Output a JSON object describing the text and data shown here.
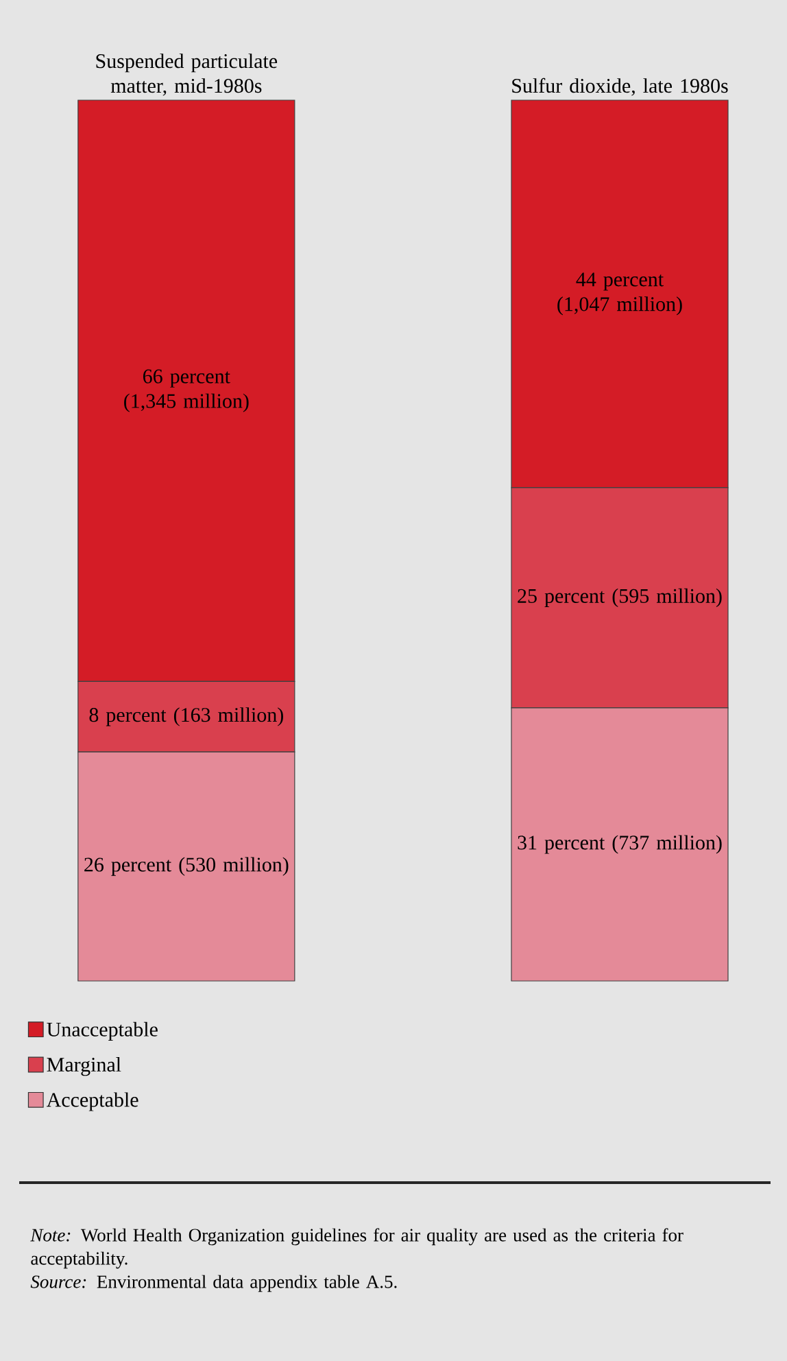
{
  "chart_data": {
    "type": "bar",
    "stacked": true,
    "categories": [
      "Suspended particulate matter, mid-1980s",
      "Sulfur dioxide, late 1980s"
    ],
    "series": [
      {
        "name": "Acceptable",
        "color": "#e48a98",
        "values": [
          26,
          31
        ],
        "value_labels": [
          "26 percent (530 million)",
          "31 percent (737 million)"
        ]
      },
      {
        "name": "Marginal",
        "color": "#d9404e",
        "values": [
          8,
          25
        ],
        "value_labels": [
          "8 percent (163 million)",
          "25 percent (595 million)"
        ]
      },
      {
        "name": "Unacceptable",
        "color": "#d41c26",
        "values": [
          66,
          44
        ],
        "value_labels": [
          "66 percent (1,345 million)",
          "44 percent (1,047 million)"
        ]
      }
    ],
    "legend": "bottom left",
    "annotations": [
      "*Note:* World Health Organization guidelines for air quality are used as the criteria for acceptability.",
      "*Source:* Environmental data appendix table A.5."
    ]
  }
}
